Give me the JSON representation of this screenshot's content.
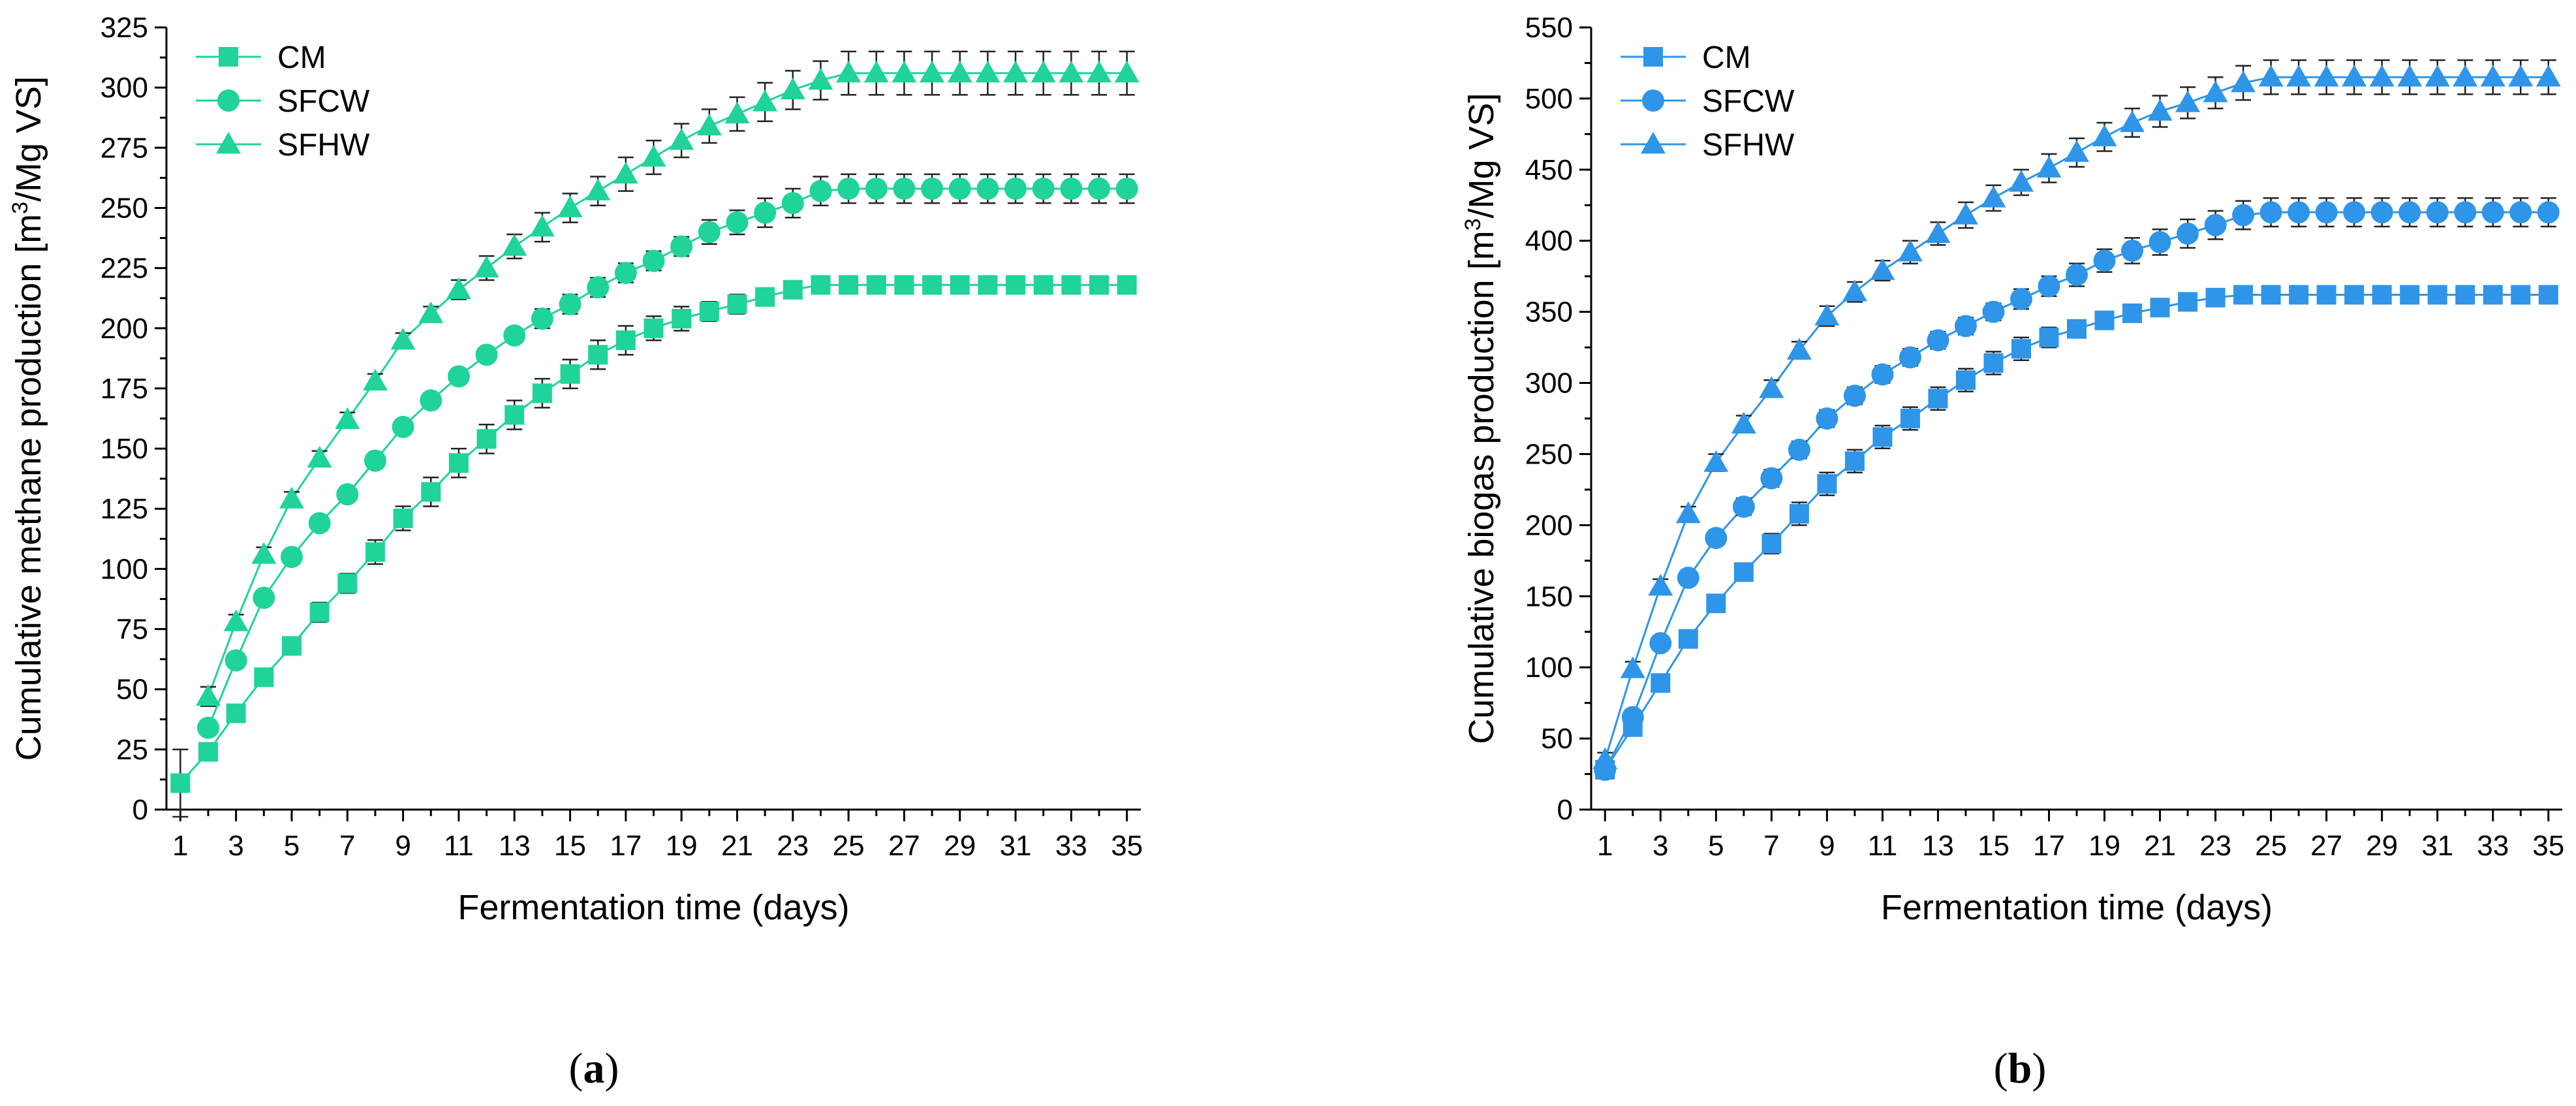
{
  "chart_data": [
    {
      "type": "line",
      "panel": "a",
      "caption_open": "(",
      "caption_letter": "a",
      "caption_close": ")",
      "xlabel": "Fermentation time (days)",
      "ylabel": "Cumulative methane production [m³/Mg VS]",
      "ylabel_parts": {
        "pre": "Cumulative methane production [m",
        "sup": "3",
        "post": "/Mg VS]"
      },
      "xlim": [
        0.5,
        35.5
      ],
      "ylim": [
        0,
        325
      ],
      "xticks": [
        1,
        3,
        5,
        7,
        9,
        11,
        13,
        15,
        17,
        19,
        21,
        23,
        25,
        27,
        29,
        31,
        33,
        35
      ],
      "yticks": [
        0,
        25,
        50,
        75,
        100,
        125,
        150,
        175,
        200,
        225,
        250,
        275,
        300,
        325
      ],
      "color": "#1fd39a",
      "legend_position": "top-left",
      "x": [
        1,
        2,
        3,
        4,
        5,
        6,
        7,
        8,
        9,
        10,
        11,
        12,
        13,
        14,
        15,
        16,
        17,
        18,
        19,
        20,
        21,
        22,
        23,
        24,
        25,
        26,
        27,
        28,
        29,
        30,
        31,
        32,
        33,
        34,
        35
      ],
      "series": [
        {
          "name": "CM",
          "marker": "square",
          "values": [
            11,
            24,
            40,
            55,
            68,
            82,
            94,
            107,
            121,
            132,
            144,
            154,
            164,
            173,
            181,
            189,
            195,
            200,
            204,
            207,
            210,
            213,
            216,
            218,
            218,
            218,
            218,
            218,
            218,
            218,
            218,
            218,
            218,
            218,
            218
          ],
          "errors": [
            14,
            3,
            3,
            3,
            3,
            4,
            4,
            5,
            5,
            6,
            6,
            6,
            6,
            6,
            6,
            6,
            6,
            5,
            5,
            4,
            4,
            3,
            3,
            3,
            3,
            3,
            3,
            3,
            3,
            3,
            3,
            3,
            3,
            3,
            3
          ]
        },
        {
          "name": "SFCW",
          "marker": "circle",
          "values": [
            null,
            34,
            62,
            88,
            105,
            119,
            131,
            145,
            159,
            170,
            180,
            189,
            197,
            204,
            210,
            217,
            223,
            228,
            234,
            240,
            244,
            248,
            252,
            257,
            258,
            258,
            258,
            258,
            258,
            258,
            258,
            258,
            258,
            258,
            258
          ],
          "errors": [
            null,
            3,
            3,
            3,
            3,
            3,
            3,
            3,
            3,
            3,
            3,
            3,
            3,
            4,
            4,
            4,
            4,
            4,
            4,
            5,
            5,
            6,
            6,
            6,
            6,
            6,
            6,
            6,
            6,
            6,
            6,
            6,
            6,
            6,
            6
          ]
        },
        {
          "name": "SFHW",
          "marker": "triangle",
          "values": [
            null,
            47,
            78,
            106,
            129,
            146,
            162,
            178,
            195,
            206,
            216,
            225,
            234,
            242,
            250,
            257,
            264,
            271,
            278,
            284,
            289,
            294,
            299,
            303,
            306,
            306,
            306,
            306,
            306,
            306,
            306,
            306,
            306,
            306,
            306
          ],
          "errors": [
            null,
            4,
            3,
            3,
            3,
            3,
            3,
            3,
            3,
            3,
            4,
            5,
            5,
            6,
            6,
            6,
            7,
            7,
            7,
            7,
            7,
            8,
            8,
            8,
            9,
            9,
            9,
            9,
            9,
            9,
            9,
            9,
            9,
            9,
            9
          ]
        }
      ]
    },
    {
      "type": "line",
      "panel": "b",
      "caption_open": "(",
      "caption_letter": "b",
      "caption_close": ")",
      "xlabel": "Fermentation time (days)",
      "ylabel": "Cumulative biogas production [m³/Mg VS]",
      "ylabel_parts": {
        "pre": "Cumulative biogas production [m",
        "sup": "3",
        "post": "/Mg VS]"
      },
      "xlim": [
        0.5,
        35.5
      ],
      "ylim": [
        0,
        550
      ],
      "xticks": [
        1,
        3,
        5,
        7,
        9,
        11,
        13,
        15,
        17,
        19,
        21,
        23,
        25,
        27,
        29,
        31,
        33,
        35
      ],
      "yticks": [
        0,
        50,
        100,
        150,
        200,
        250,
        300,
        350,
        400,
        450,
        500,
        550
      ],
      "color": "#2f95e8",
      "legend_position": "top-left",
      "x": [
        1,
        2,
        3,
        4,
        5,
        6,
        7,
        8,
        9,
        10,
        11,
        12,
        13,
        14,
        15,
        16,
        17,
        18,
        19,
        20,
        21,
        22,
        23,
        24,
        25,
        26,
        27,
        28,
        29,
        30,
        31,
        32,
        33,
        34,
        35
      ],
      "series": [
        {
          "name": "CM",
          "marker": "square",
          "values": [
            28,
            58,
            89,
            120,
            145,
            167,
            187,
            208,
            229,
            245,
            262,
            275,
            289,
            302,
            314,
            324,
            332,
            338,
            344,
            349,
            353,
            357,
            360,
            362,
            362,
            362,
            362,
            362,
            362,
            362,
            362,
            362,
            362,
            362,
            362
          ],
          "errors": [
            6,
            6,
            6,
            6,
            6,
            6,
            7,
            8,
            8,
            8,
            8,
            8,
            8,
            8,
            8,
            8,
            7,
            6,
            5,
            5,
            5,
            5,
            5,
            5,
            5,
            5,
            5,
            5,
            5,
            5,
            5,
            5,
            5,
            5,
            5
          ]
        },
        {
          "name": "SFCW",
          "marker": "circle",
          "values": [
            28,
            65,
            117,
            163,
            191,
            213,
            233,
            253,
            275,
            291,
            306,
            318,
            330,
            340,
            350,
            359,
            368,
            376,
            386,
            393,
            399,
            405,
            411,
            418,
            420,
            420,
            420,
            420,
            420,
            420,
            420,
            420,
            420,
            420,
            420
          ],
          "errors": [
            5,
            5,
            5,
            5,
            5,
            6,
            6,
            6,
            6,
            6,
            6,
            6,
            6,
            6,
            6,
            7,
            7,
            8,
            8,
            9,
            9,
            10,
            10,
            10,
            10,
            10,
            10,
            10,
            10,
            10,
            10,
            10,
            10,
            10,
            10
          ]
        },
        {
          "name": "SFHW",
          "marker": "triangle",
          "values": [
            35,
            99,
            157,
            208,
            244,
            271,
            296,
            323,
            347,
            364,
            379,
            392,
            405,
            418,
            430,
            441,
            451,
            462,
            473,
            483,
            491,
            497,
            504,
            511,
            515,
            515,
            515,
            515,
            515,
            515,
            515,
            515,
            515,
            515,
            515
          ],
          "errors": [
            5,
            5,
            5,
            5,
            6,
            6,
            6,
            6,
            7,
            7,
            7,
            8,
            8,
            9,
            9,
            9,
            10,
            10,
            10,
            10,
            11,
            11,
            11,
            12,
            12,
            12,
            12,
            12,
            12,
            12,
            12,
            12,
            12,
            12,
            12
          ]
        }
      ]
    }
  ]
}
